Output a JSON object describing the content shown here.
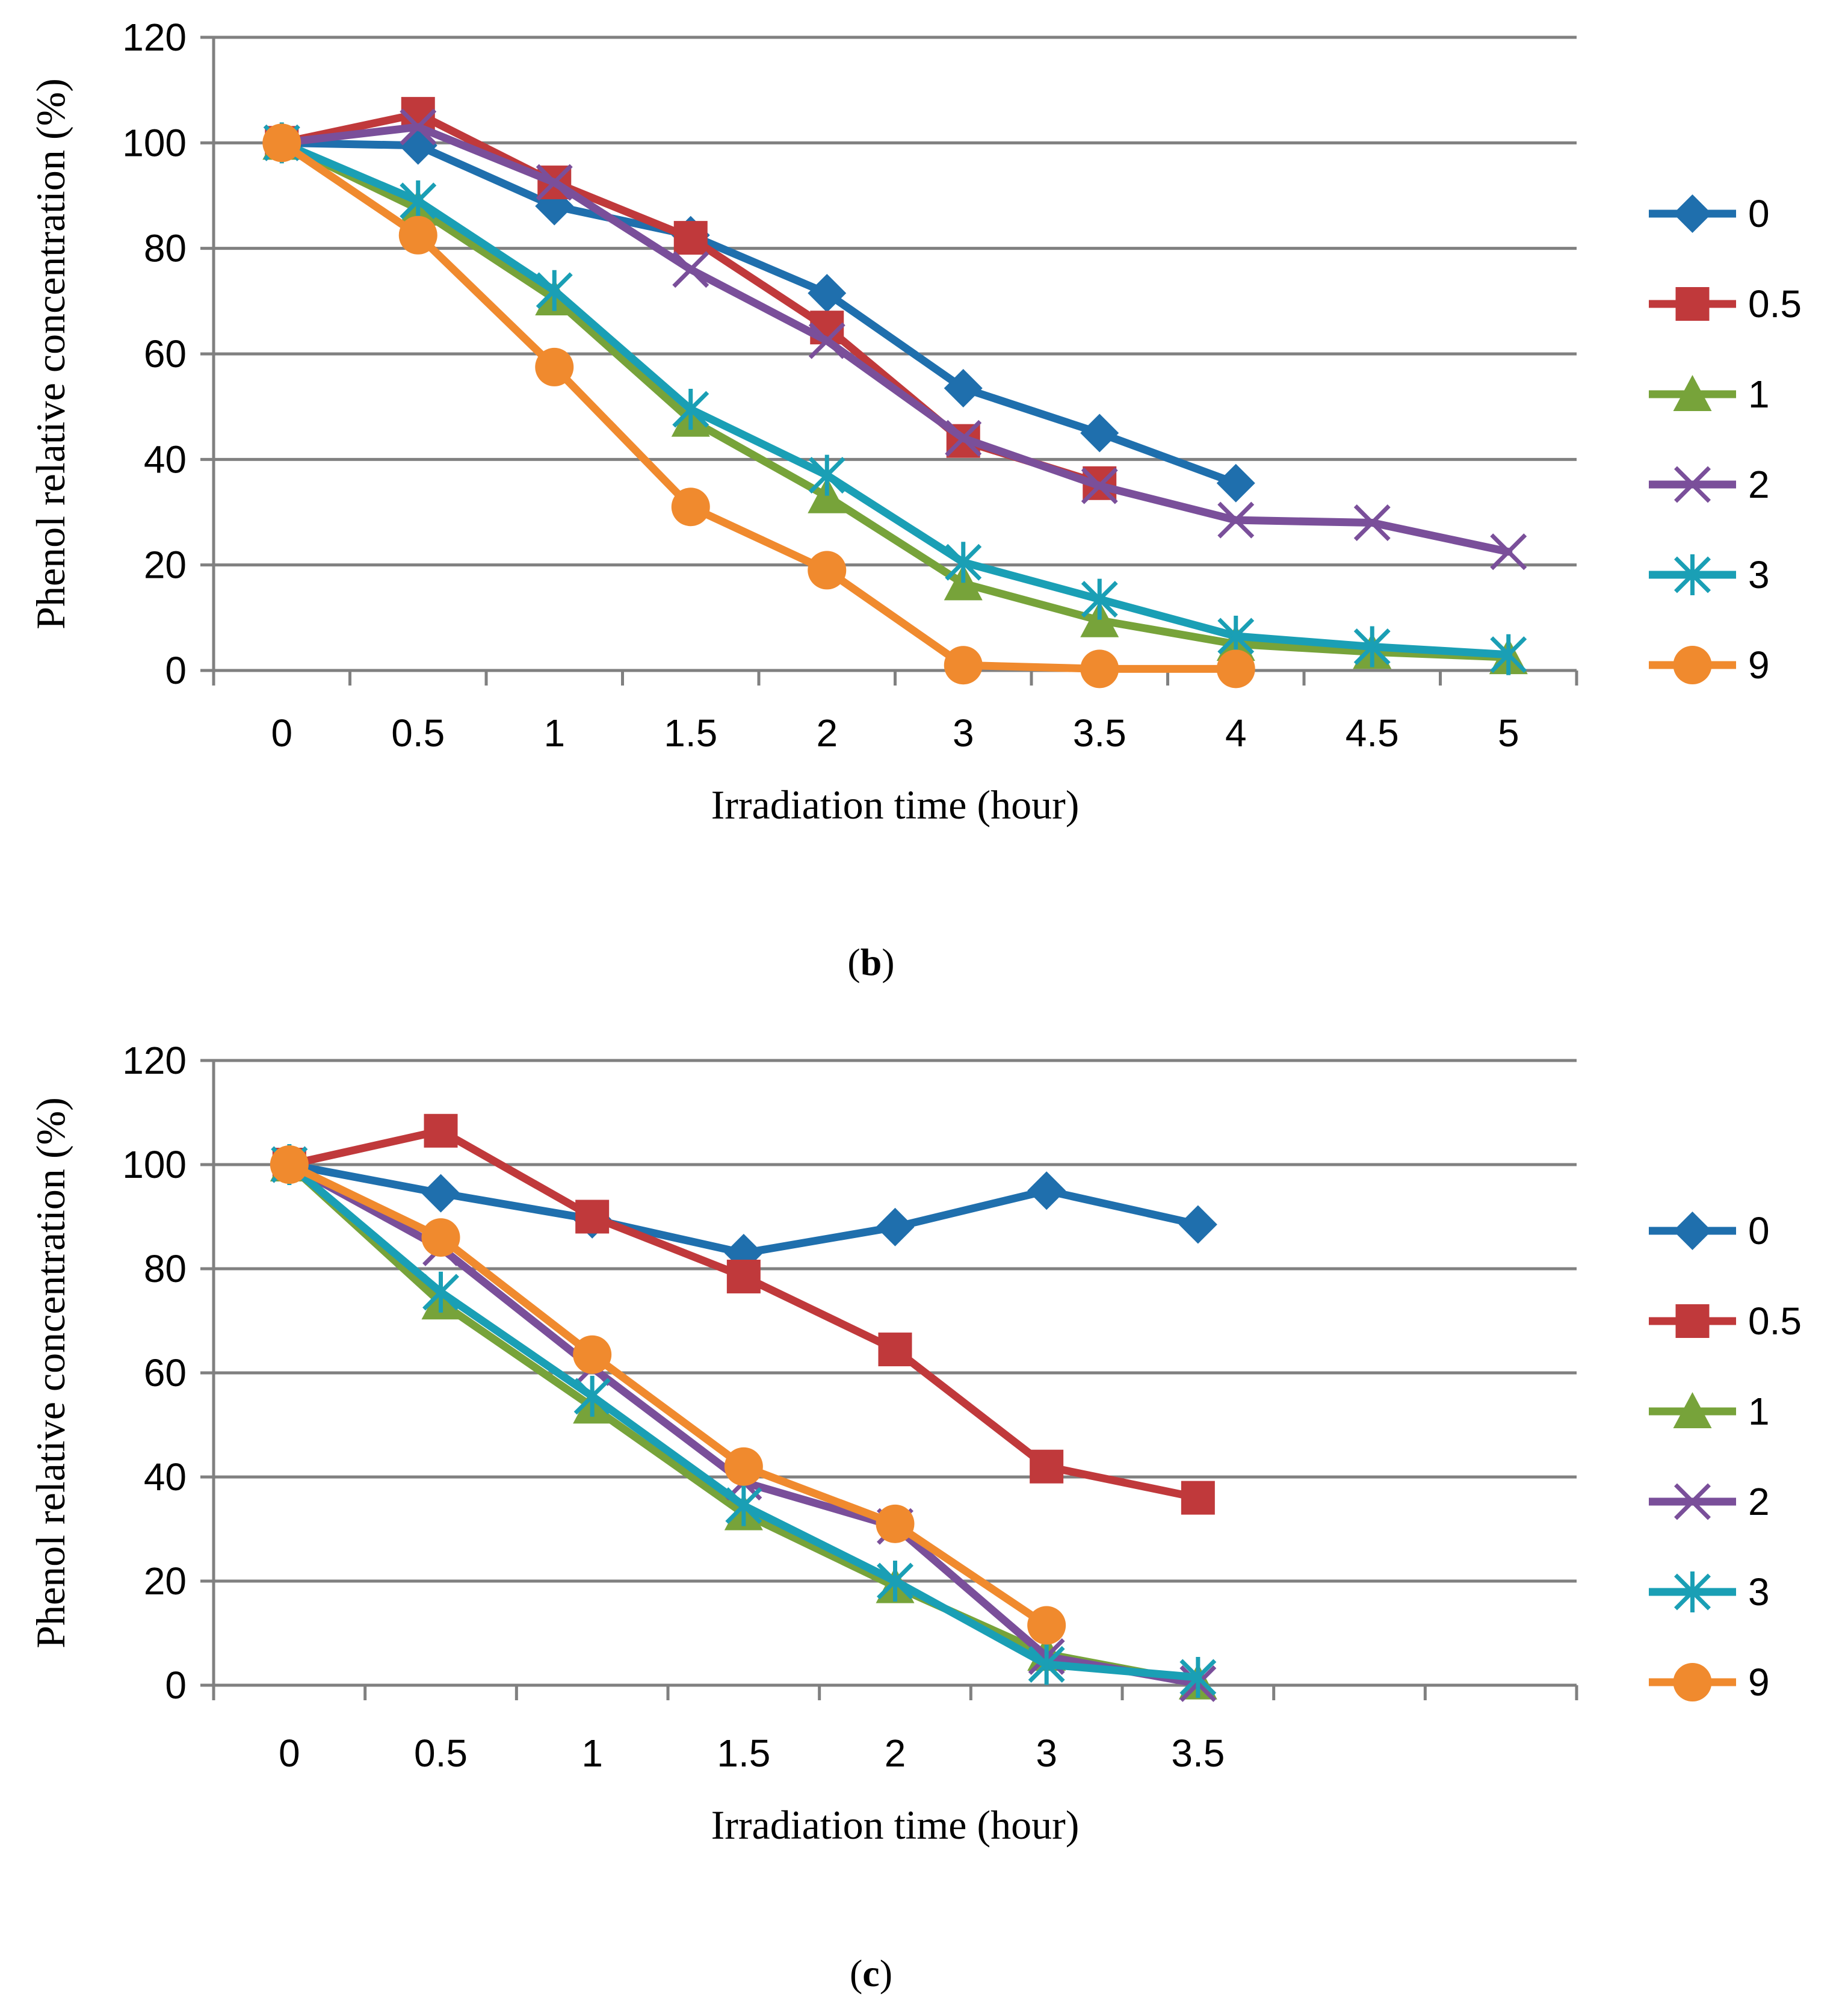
{
  "chart_data": [
    {
      "type": "line",
      "panel_label": "b",
      "xlabel": "Irradiation time (hour)",
      "ylabel": "Phenol relative concentration (%)",
      "ylim": [
        0,
        120
      ],
      "yticks": [
        0,
        20,
        40,
        60,
        80,
        100,
        120
      ],
      "categories": [
        "0",
        "0.5",
        "1",
        "1.5",
        "2",
        "3",
        "3.5",
        "4",
        "4.5",
        "5"
      ],
      "grid": true,
      "legend_position": "right",
      "series": [
        {
          "name": "0",
          "color": "#1f6fad",
          "marker": "diamond",
          "values": [
            100,
            99.5,
            88,
            82.5,
            71.5,
            53.5,
            45,
            35.5,
            null,
            null
          ]
        },
        {
          "name": "0.5",
          "color": "#c0393b",
          "marker": "square",
          "values": [
            100,
            105.5,
            92.5,
            82,
            65,
            43.5,
            35.5,
            null,
            null,
            null
          ]
        },
        {
          "name": "1",
          "color": "#77a33a",
          "marker": "triangle",
          "values": [
            100,
            87.5,
            70.5,
            47.5,
            33,
            16.5,
            9.5,
            5,
            3.5,
            2.5
          ]
        },
        {
          "name": "2",
          "color": "#7a4f9a",
          "marker": "x",
          "values": [
            100,
            103,
            92.5,
            76,
            62.5,
            44,
            35,
            28.5,
            28,
            22.5
          ]
        },
        {
          "name": "3",
          "color": "#1a9fb5",
          "marker": "star",
          "values": [
            100,
            89,
            72,
            49.5,
            37,
            20.5,
            13.5,
            6.5,
            4.5,
            3
          ]
        },
        {
          "name": "9",
          "color": "#f08a2e",
          "marker": "circle",
          "values": [
            100,
            82.5,
            57.5,
            31,
            19,
            1,
            0.3,
            0.3,
            null,
            null
          ]
        }
      ]
    },
    {
      "type": "line",
      "panel_label": "c",
      "xlabel": "Irradiation time (hour)",
      "ylabel": "Phenol relative concentration (%)",
      "ylim": [
        0,
        120
      ],
      "yticks": [
        0,
        20,
        40,
        60,
        80,
        100,
        120
      ],
      "categories": [
        "0",
        "0.5",
        "1",
        "1.5",
        "2",
        "3",
        "3.5",
        "",
        ""
      ],
      "grid": true,
      "legend_position": "right",
      "series": [
        {
          "name": "0",
          "color": "#1f6fad",
          "marker": "diamond",
          "values": [
            100,
            94.5,
            89.5,
            83,
            88,
            95,
            88.5,
            null,
            null
          ]
        },
        {
          "name": "0.5",
          "color": "#c0393b",
          "marker": "square",
          "values": [
            100,
            106.5,
            90,
            78.5,
            64.5,
            42,
            36,
            null,
            null
          ]
        },
        {
          "name": "1",
          "color": "#77a33a",
          "marker": "triangle",
          "values": [
            100,
            73.5,
            53.5,
            33,
            19,
            6,
            0.5,
            null,
            null
          ]
        },
        {
          "name": "2",
          "color": "#7a4f9a",
          "marker": "x",
          "values": [
            100,
            84,
            61,
            39,
            30.5,
            5.5,
            0.3,
            null,
            null
          ]
        },
        {
          "name": "3",
          "color": "#1a9fb5",
          "marker": "star",
          "values": [
            100,
            75.5,
            55.5,
            34.5,
            20,
            4,
            1.5,
            null,
            null
          ]
        },
        {
          "name": "9",
          "color": "#f08a2e",
          "marker": "circle",
          "values": [
            100,
            86,
            63.5,
            42,
            31,
            11.5,
            null,
            null,
            null
          ]
        }
      ]
    }
  ]
}
